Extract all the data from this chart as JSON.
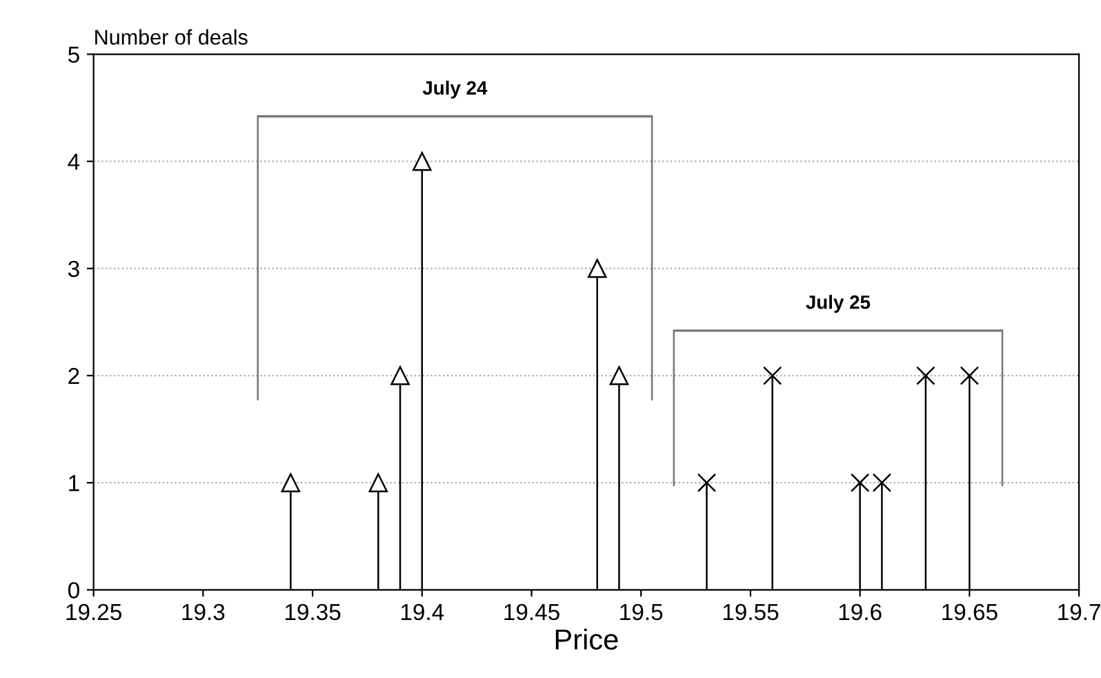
{
  "chart_data": {
    "type": "lollipop",
    "xlabel": "Price",
    "ylabel": "Number of deals",
    "xlim": [
      19.25,
      19.7
    ],
    "xticks": [
      19.25,
      19.3,
      19.35,
      19.4,
      19.45,
      19.5,
      19.55,
      19.6,
      19.65,
      19.7
    ],
    "ylim": [
      0,
      5
    ],
    "yticks": [
      0,
      1,
      2,
      3,
      4,
      5
    ],
    "grid": "y",
    "annotations": [
      "July 24",
      "July 25"
    ],
    "series": [
      {
        "color": "#000000",
        "marker": "triangle",
        "x": [
          19.34,
          19.38,
          19.39,
          19.4,
          19.48,
          19.49
        ],
        "values": [
          1,
          1,
          2,
          4,
          3,
          2
        ]
      },
      {
        "color": "#000000",
        "marker": "cross",
        "x": [
          19.53,
          19.56,
          19.6,
          19.61,
          19.63,
          19.65
        ],
        "values": [
          1,
          2,
          1,
          1,
          2,
          2
        ]
      }
    ]
  }
}
